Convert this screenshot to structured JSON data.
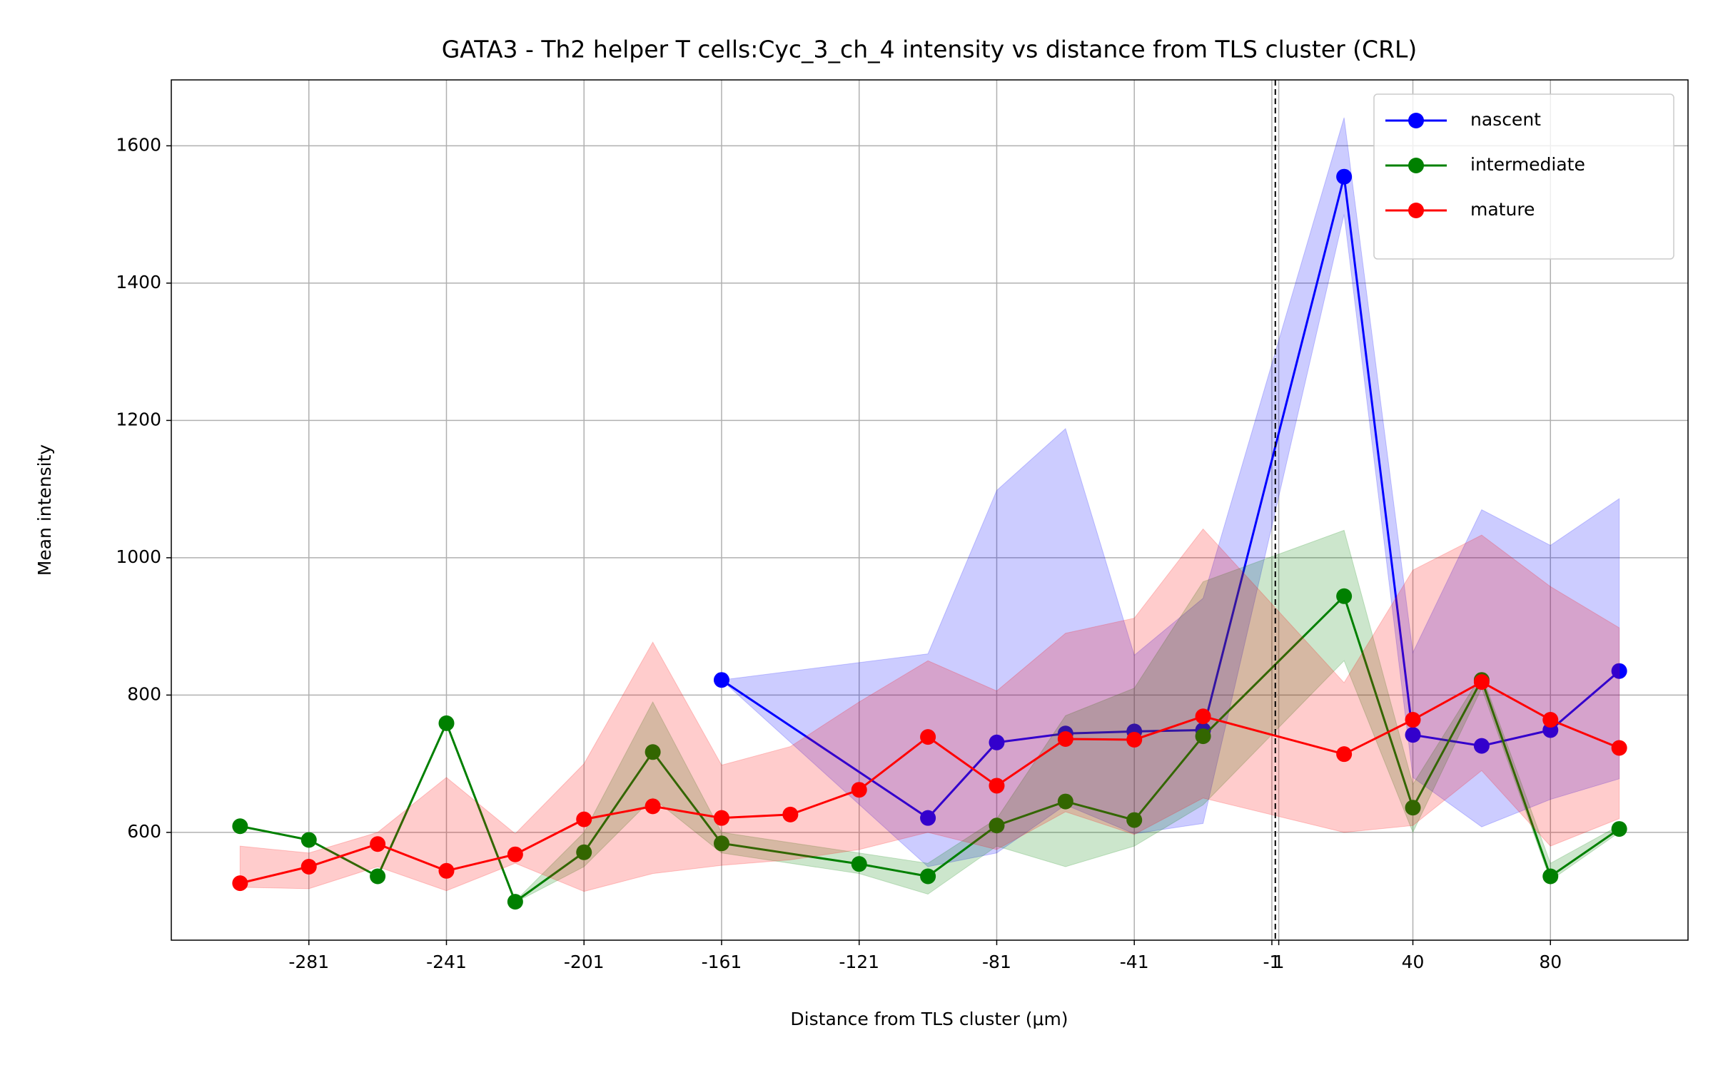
{
  "chart_data": {
    "type": "line",
    "title": "GATA3 - Th2 helper T cells:Cyc_3_ch_4 intensity vs distance from TLS cluster (CRL)",
    "xlabel": "Distance from TLS cluster (μm)",
    "ylabel": "Mean intensity",
    "xlim": [
      -321,
      120
    ],
    "ylim": [
      443,
      1696
    ],
    "xticks": [
      -281,
      -241,
      -201,
      -161,
      -121,
      -81,
      -41,
      -1,
      1,
      40,
      80
    ],
    "yticks": [
      600,
      800,
      1000,
      1200,
      1400,
      1600
    ],
    "grid": true,
    "legend": "upper right",
    "vline": 0,
    "series": [
      {
        "name": "nascent",
        "color": "#0000ff",
        "x": [
          -161,
          -101,
          -81,
          -61,
          -41,
          -21,
          20,
          40,
          60,
          80,
          100
        ],
        "values": [
          822,
          621,
          731,
          744,
          747,
          749,
          1555,
          742,
          726,
          749,
          835
        ],
        "upper": [
          822,
          860,
          1098,
          1188,
          858,
          941,
          1641,
          862,
          1070,
          1018,
          1086
        ],
        "lower": [
          822,
          550,
          570,
          640,
          598,
          613,
          1500,
          680,
          608,
          648,
          678
        ]
      },
      {
        "name": "intermediate",
        "color": "#008000",
        "x": [
          -301,
          -281,
          -261,
          -241,
          -221,
          -201,
          -181,
          -161,
          -121,
          -101,
          -81,
          -61,
          -41,
          -21,
          20,
          40,
          60,
          80,
          100
        ],
        "values": [
          609,
          589,
          536,
          759,
          499,
          571,
          717,
          584,
          554,
          536,
          610,
          645,
          618,
          740,
          944,
          636,
          822,
          536,
          605
        ],
        "upper": [
          609,
          589,
          536,
          759,
          500,
          600,
          790,
          600,
          570,
          555,
          620,
          770,
          810,
          965,
          1040,
          670,
          830,
          555,
          610
        ],
        "lower": [
          609,
          589,
          536,
          759,
          498,
          550,
          650,
          570,
          540,
          510,
          580,
          550,
          580,
          640,
          850,
          600,
          810,
          530,
          600
        ]
      },
      {
        "name": "mature",
        "color": "#ff0000",
        "x": [
          -301,
          -281,
          -261,
          -241,
          -221,
          -201,
          -181,
          -161,
          -141,
          -121,
          -101,
          -81,
          -61,
          -41,
          -21,
          20,
          40,
          60,
          80,
          100
        ],
        "values": [
          526,
          550,
          583,
          544,
          568,
          619,
          638,
          621,
          626,
          662,
          739,
          668,
          736,
          735,
          769,
          714,
          764,
          819,
          764,
          723
        ],
        "upper": [
          580,
          570,
          600,
          680,
          598,
          700,
          877,
          698,
          725,
          790,
          850,
          806,
          890,
          912,
          1042,
          818,
          982,
          1033,
          958,
          898
        ],
        "lower": [
          520,
          518,
          550,
          515,
          555,
          514,
          540,
          552,
          560,
          575,
          600,
          575,
          630,
          597,
          650,
          600,
          610,
          690,
          580,
          620
        ]
      }
    ]
  }
}
